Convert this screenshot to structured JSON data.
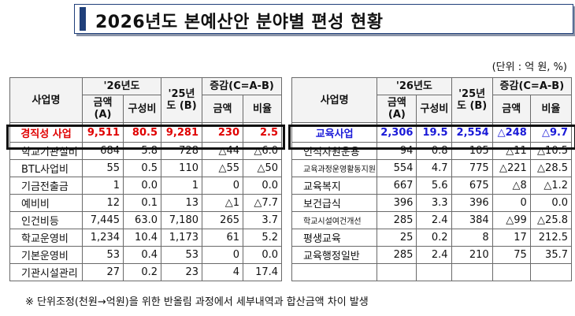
{
  "title": "2026년도 본예산안 분야별 편성 현황",
  "unit": "(단위 : 억 원, %)",
  "left_table": {
    "headers": {
      "name": "사업명",
      "y26": "'26년도",
      "amount_a": "금액 (A)",
      "ratio": "구성비",
      "y25": "'25년도 (B)",
      "change": "증감(C=A-B)",
      "ch_amount": "금액",
      "ch_rate": "비율"
    },
    "highlight": {
      "name": "경직성 사업",
      "amount": "9,511",
      "ratio": "80.5",
      "prev": "9,281",
      "diff": "230",
      "rate": "2.5"
    },
    "rows": [
      {
        "name": "학교기관실비",
        "amount": "684",
        "ratio": "5.8",
        "prev": "728",
        "diff": "△44",
        "rate": "△6.0"
      },
      {
        "name": "BTL사업비",
        "amount": "55",
        "ratio": "0.5",
        "prev": "110",
        "diff": "△55",
        "rate": "△50"
      },
      {
        "name": "기금전출금",
        "amount": "1",
        "ratio": "0.0",
        "prev": "1",
        "diff": "0",
        "rate": "0.0"
      },
      {
        "name": "예비비",
        "amount": "12",
        "ratio": "0.1",
        "prev": "13",
        "diff": "△1",
        "rate": "△7.7"
      },
      {
        "name": "인건비등",
        "amount": "7,445",
        "ratio": "63.0",
        "prev": "7,180",
        "diff": "265",
        "rate": "3.7"
      },
      {
        "name": "학교운영비",
        "amount": "1,234",
        "ratio": "10.4",
        "prev": "1,173",
        "diff": "61",
        "rate": "5.2"
      },
      {
        "name": "기본운영비",
        "amount": "53",
        "ratio": "0.4",
        "prev": "53",
        "diff": "0",
        "rate": "0.0"
      },
      {
        "name": "기관시설관리",
        "amount": "27",
        "ratio": "0.2",
        "prev": "23",
        "diff": "4",
        "rate": "17.4"
      }
    ]
  },
  "right_table": {
    "headers": {
      "name": "사업명",
      "y26": "'26년도",
      "amount_a": "금액 (A)",
      "ratio": "구성비",
      "y25": "'25년도 (B)",
      "change": "증감(C=A-B)",
      "ch_amount": "금액",
      "ch_rate": "비율"
    },
    "highlight": {
      "name": "교육사업",
      "amount": "2,306",
      "ratio": "19.5",
      "prev": "2,554",
      "diff": "△248",
      "rate": "△9.7"
    },
    "rows": [
      {
        "name": "인적자원운용",
        "amount": "94",
        "ratio": "0.8",
        "prev": "105",
        "diff": "△11",
        "rate": "△10.5"
      },
      {
        "name": "교육과정운영활동지원",
        "amount": "554",
        "ratio": "4.7",
        "prev": "775",
        "diff": "△221",
        "rate": "△28.5"
      },
      {
        "name": "교육복지",
        "amount": "667",
        "ratio": "5.6",
        "prev": "675",
        "diff": "△8",
        "rate": "△1.2"
      },
      {
        "name": "보건급식",
        "amount": "396",
        "ratio": "3.3",
        "prev": "396",
        "diff": "0",
        "rate": "0.0"
      },
      {
        "name": "학교시설여건개선",
        "amount": "285",
        "ratio": "2.4",
        "prev": "384",
        "diff": "△99",
        "rate": "△25.8"
      },
      {
        "name": "평생교육",
        "amount": "25",
        "ratio": "0.2",
        "prev": "8",
        "diff": "17",
        "rate": "212.5"
      },
      {
        "name": "교육행정일반",
        "amount": "285",
        "ratio": "2.4",
        "prev": "210",
        "diff": "75",
        "rate": "35.7"
      }
    ]
  },
  "note": "※ 단위조정(천원→억원)을 위한 반올림 과정에서 세부내역과 합산금액 차이 발생"
}
